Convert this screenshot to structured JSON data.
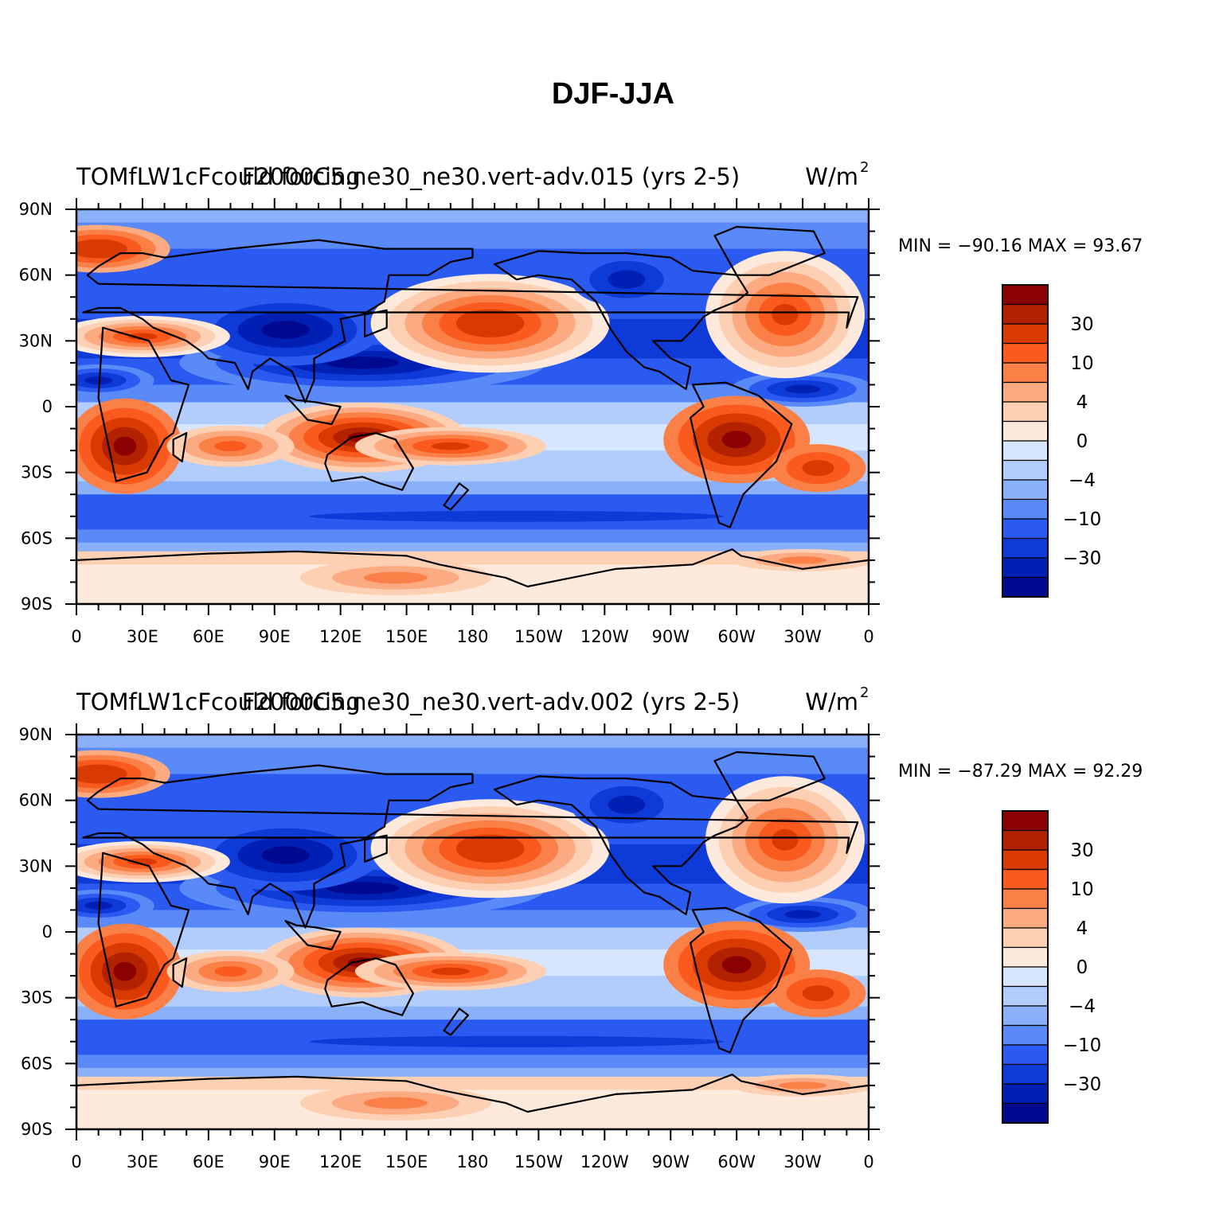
{
  "figure": {
    "title": "DJF-JJA"
  },
  "x_ticks": [
    "0",
    "30E",
    "60E",
    "90E",
    "120E",
    "150E",
    "180",
    "150W",
    "120W",
    "90W",
    "60W",
    "30W",
    "0"
  ],
  "y_ticks": [
    "90N",
    "60N",
    "30N",
    "0",
    "30S",
    "60S",
    "90S"
  ],
  "colorbar": {
    "colors": [
      "#8b0000",
      "#b22200",
      "#d93a00",
      "#fa5a1e",
      "#fb8048",
      "#fcaa82",
      "#fdd0b4",
      "#fdeadc",
      "#d6e6fe",
      "#b2cdfc",
      "#8ab0fa",
      "#5a8af8",
      "#2b5af0",
      "#0e3ad8",
      "#0020b4",
      "#000a90"
    ],
    "labels": [
      "30",
      "10",
      "4",
      "0",
      "−4",
      "−10",
      "−30"
    ]
  },
  "panels": [
    {
      "title_left": "TOMfLW1cFcould forcing",
      "title_center": "F2000C5.ne30_ne30.vert-adv.015 (yrs 2-5)",
      "units": "W/m",
      "units_sup": "2",
      "stats": "MIN = −90.16 MAX =  93.67"
    },
    {
      "title_left": "TOMfLW1cFcould forcing",
      "title_center": "F2000C5.ne30_ne30.vert-adv.002 (yrs 2-5)",
      "units": "W/m",
      "units_sup": "2",
      "stats": "MIN = −87.29 MAX =  92.29"
    }
  ]
}
